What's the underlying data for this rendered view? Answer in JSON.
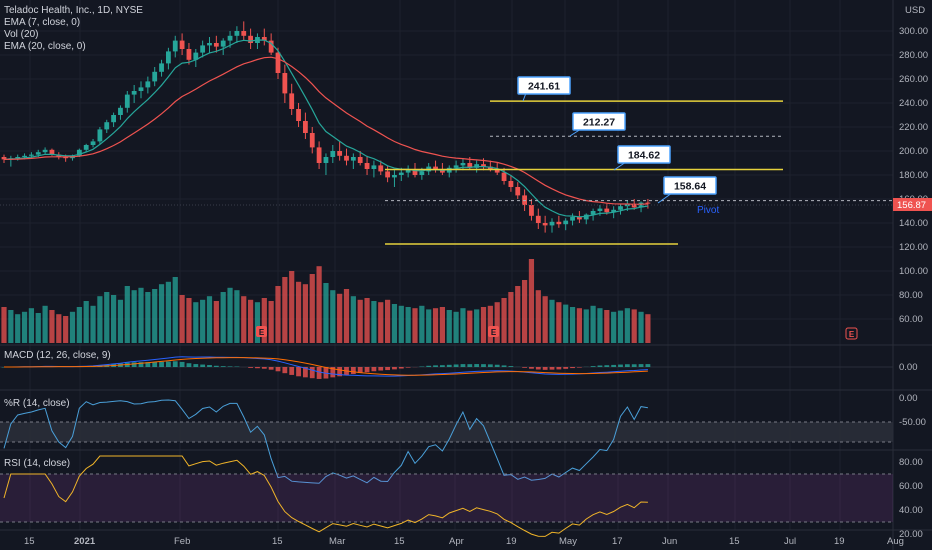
{
  "theme": {
    "bg": "#131722",
    "grid": "#1e222d",
    "text": "#b2b5be",
    "up": "#26a69a",
    "down": "#ef5350",
    "ema7": "#26a69a",
    "ema20": "#ef5350",
    "level": "#e6d23c",
    "rsi": "#ab47bc",
    "wpr": "#4a9fd8",
    "macd": "#2962ff",
    "signal": "#ff6d00"
  },
  "legend": {
    "title": "Teladoc Health, Inc., 1D, NYSE",
    "ema7": "EMA (7, close, 0)",
    "vol": "Vol (20)",
    "ema20": "EMA (20, close, 0)",
    "macd": "MACD (12, 26, close, 9)",
    "wpr": "%R (14, close)",
    "rsi": "RSI (14, close)"
  },
  "currency": "USD",
  "price_axis": [
    "300.00",
    "280.00",
    "260.00",
    "240.00",
    "220.00",
    "200.00",
    "180.00",
    "160.00",
    "140.00",
    "120.00",
    "100.00",
    "80.00",
    "60.00"
  ],
  "current_price": "156.87",
  "macd_axis": [
    "0.00"
  ],
  "wpr_axis": [
    "0.00",
    "-50.00"
  ],
  "rsi_axis": [
    "80.00",
    "60.00",
    "40.00",
    "20.00"
  ],
  "time_axis": [
    "15",
    "2021",
    "Feb",
    "15",
    "Mar",
    "15",
    "Apr",
    "19",
    "May",
    "17",
    "Jun",
    "15",
    "Jul",
    "19",
    "Aug"
  ],
  "callouts": [
    "241.61",
    "212.27",
    "184.62",
    "158.64"
  ],
  "pivot_label": "Pivot",
  "earnings_label": "E",
  "chart_data": {
    "type": "candlestick",
    "levels": [
      241.61,
      212.27,
      184.62,
      158.64,
      130
    ],
    "ohlc": [
      [
        195,
        197,
        190,
        193
      ],
      [
        193,
        196,
        187,
        194
      ],
      [
        194,
        197,
        192,
        195
      ],
      [
        195,
        198,
        193,
        196
      ],
      [
        196,
        199,
        194,
        197
      ],
      [
        197,
        201,
        195,
        199
      ],
      [
        199,
        203,
        197,
        201
      ],
      [
        201,
        202,
        196,
        197
      ],
      [
        197,
        199,
        193,
        195
      ],
      [
        195,
        197,
        191,
        194
      ],
      [
        194,
        197,
        192,
        196
      ],
      [
        196,
        202,
        195,
        201
      ],
      [
        201,
        206,
        199,
        205
      ],
      [
        205,
        210,
        203,
        208
      ],
      [
        208,
        220,
        206,
        218
      ],
      [
        218,
        226,
        215,
        224
      ],
      [
        224,
        232,
        220,
        230
      ],
      [
        230,
        238,
        226,
        236
      ],
      [
        236,
        250,
        232,
        247
      ],
      [
        247,
        255,
        240,
        250
      ],
      [
        250,
        258,
        244,
        253
      ],
      [
        253,
        262,
        248,
        258
      ],
      [
        258,
        270,
        254,
        266
      ],
      [
        266,
        276,
        262,
        273
      ],
      [
        273,
        286,
        268,
        283
      ],
      [
        283,
        296,
        278,
        292
      ],
      [
        292,
        298,
        280,
        285
      ],
      [
        285,
        290,
        272,
        276
      ],
      [
        276,
        285,
        270,
        282
      ],
      [
        282,
        292,
        278,
        288
      ],
      [
        288,
        295,
        282,
        290
      ],
      [
        290,
        296,
        282,
        287
      ],
      [
        287,
        294,
        280,
        292
      ],
      [
        292,
        300,
        286,
        296
      ],
      [
        296,
        304,
        290,
        300
      ],
      [
        300,
        308,
        292,
        296
      ],
      [
        296,
        302,
        285,
        290
      ],
      [
        290,
        298,
        285,
        295
      ],
      [
        295,
        302,
        288,
        292
      ],
      [
        292,
        298,
        280,
        282
      ],
      [
        282,
        286,
        260,
        265
      ],
      [
        265,
        272,
        240,
        248
      ],
      [
        248,
        256,
        230,
        235
      ],
      [
        235,
        240,
        220,
        225
      ],
      [
        225,
        232,
        210,
        215
      ],
      [
        215,
        220,
        198,
        203
      ],
      [
        203,
        208,
        185,
        190
      ],
      [
        190,
        198,
        180,
        195
      ],
      [
        195,
        205,
        190,
        200
      ],
      [
        200,
        208,
        192,
        196
      ],
      [
        196,
        202,
        188,
        192
      ],
      [
        192,
        198,
        185,
        195
      ],
      [
        195,
        200,
        188,
        190
      ],
      [
        190,
        196,
        180,
        185
      ],
      [
        185,
        192,
        178,
        188
      ],
      [
        188,
        192,
        180,
        183
      ],
      [
        183,
        188,
        174,
        178
      ],
      [
        178,
        184,
        170,
        180
      ],
      [
        180,
        186,
        175,
        182
      ],
      [
        182,
        188,
        178,
        185
      ],
      [
        185,
        190,
        178,
        180
      ],
      [
        180,
        186,
        176,
        183
      ],
      [
        183,
        190,
        180,
        187
      ],
      [
        187,
        192,
        182,
        185
      ],
      [
        185,
        190,
        180,
        182
      ],
      [
        182,
        188,
        178,
        186
      ],
      [
        186,
        192,
        182,
        188
      ],
      [
        188,
        194,
        184,
        190
      ],
      [
        190,
        195,
        185,
        186
      ],
      [
        186,
        192,
        182,
        189
      ],
      [
        189,
        194,
        184,
        187
      ],
      [
        187,
        192,
        183,
        185
      ],
      [
        185,
        190,
        180,
        182
      ],
      [
        182,
        186,
        172,
        175
      ],
      [
        175,
        180,
        166,
        170
      ],
      [
        170,
        174,
        160,
        163
      ],
      [
        163,
        168,
        150,
        155
      ],
      [
        155,
        160,
        142,
        146
      ],
      [
        146,
        152,
        135,
        140
      ],
      [
        140,
        146,
        132,
        138
      ],
      [
        138,
        144,
        132,
        141
      ],
      [
        141,
        146,
        136,
        139
      ],
      [
        139,
        144,
        134,
        142
      ],
      [
        142,
        148,
        138,
        145
      ],
      [
        145,
        150,
        140,
        143
      ],
      [
        143,
        148,
        139,
        147
      ],
      [
        147,
        152,
        142,
        150
      ],
      [
        150,
        155,
        146,
        152
      ],
      [
        152,
        156,
        147,
        149
      ],
      [
        149,
        154,
        144,
        151
      ],
      [
        151,
        156,
        147,
        154
      ],
      [
        154,
        159,
        150,
        156
      ],
      [
        156,
        160,
        151,
        153
      ],
      [
        153,
        158,
        149,
        157
      ],
      [
        157,
        160,
        152,
        156.87
      ]
    ],
    "volume": [
      60,
      55,
      48,
      52,
      58,
      50,
      62,
      55,
      48,
      45,
      52,
      60,
      70,
      62,
      78,
      85,
      80,
      72,
      95,
      88,
      92,
      85,
      90,
      98,
      102,
      110,
      80,
      75,
      68,
      72,
      78,
      70,
      85,
      92,
      88,
      78,
      72,
      68,
      75,
      70,
      95,
      110,
      120,
      102,
      98,
      115,
      128,
      100,
      88,
      82,
      90,
      78,
      72,
      75,
      70,
      68,
      72,
      65,
      62,
      60,
      58,
      62,
      56,
      58,
      60,
      55,
      52,
      58,
      54,
      56,
      60,
      62,
      68,
      75,
      85,
      95,
      105,
      140,
      88,
      78,
      72,
      68,
      64,
      60,
      58,
      56,
      62,
      58,
      55,
      52,
      54,
      58,
      56,
      52,
      48
    ],
    "ema7": [],
    "ema20": []
  }
}
